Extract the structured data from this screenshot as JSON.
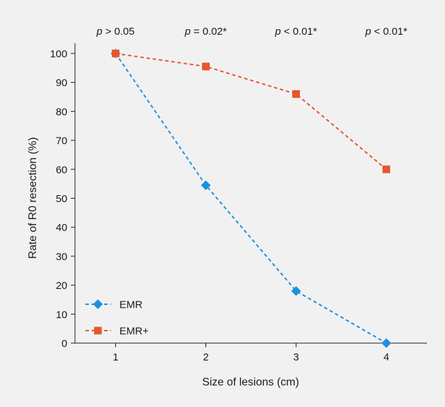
{
  "chart_data": {
    "type": "line",
    "xlabel": "Size of lesions (cm)",
    "ylabel": "Rate of R0 resection (%)",
    "x": [
      1,
      2,
      3,
      4
    ],
    "xlim": [
      0.55,
      4.45
    ],
    "ylim": [
      0,
      100
    ],
    "y_ticks": [
      0,
      10,
      20,
      30,
      40,
      50,
      60,
      70,
      80,
      90,
      100
    ],
    "x_ticks": [
      1,
      2,
      3,
      4
    ],
    "grid": false,
    "legend_position": "bottom-left",
    "p_values": [
      {
        "x": 1,
        "prefix": "p",
        "text": " > 0.05"
      },
      {
        "x": 2,
        "prefix": "p",
        "text": " = 0.02*"
      },
      {
        "x": 3,
        "prefix": "p",
        "text": " < 0.01*"
      },
      {
        "x": 4,
        "prefix": "p",
        "text": " < 0.01*"
      }
    ],
    "series": [
      {
        "name": "EMR",
        "marker": "diamond",
        "color": "#1e90e0",
        "values": [
          100,
          54.5,
          18,
          0
        ]
      },
      {
        "name": "EMR+",
        "marker": "square",
        "color": "#e8562a",
        "values": [
          100,
          95.5,
          86,
          60
        ]
      }
    ]
  }
}
